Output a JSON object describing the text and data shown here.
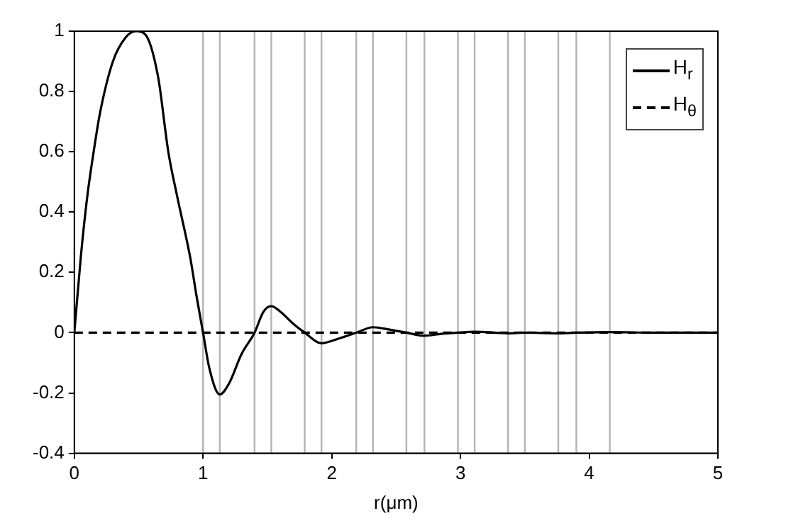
{
  "chart_data": {
    "type": "line",
    "xlabel": "r(μm)",
    "xlim": [
      0,
      5
    ],
    "xticks": [
      0,
      1,
      2,
      3,
      4,
      5
    ],
    "ylim": [
      -0.4,
      1
    ],
    "yticks": [
      -0.4,
      -0.2,
      0,
      0.2,
      0.4,
      0.6,
      0.8,
      1
    ],
    "grid": false,
    "legend": "top right",
    "marker": "none",
    "series": [
      {
        "name": "H$_{r}$",
        "color": "#000000",
        "line_style": "solid",
        "x": [
          0,
          0.05,
          0.1,
          0.15,
          0.2,
          0.3,
          0.4,
          0.48,
          0.55,
          0.65,
          0.73,
          0.8,
          0.9,
          0.95,
          1.0,
          1.05,
          1.13,
          1.2,
          1.3,
          1.4,
          1.47,
          1.53,
          1.6,
          1.7,
          1.79,
          1.92,
          2.05,
          2.19,
          2.32,
          2.45,
          2.58,
          2.72,
          2.85,
          2.98,
          3.11,
          3.37,
          3.5,
          3.76,
          3.9,
          4.16,
          4.5,
          5
        ],
        "values": [
          0,
          0.25,
          0.45,
          0.6,
          0.73,
          0.9,
          0.98,
          1,
          0.99,
          0.85,
          0.6,
          0.45,
          0.25,
          0.12,
          0,
          -0.12,
          -0.205,
          -0.17,
          -0.07,
          0,
          0.07,
          0.088,
          0.07,
          0.03,
          0,
          -0.035,
          -0.02,
          0,
          0.018,
          0.01,
          0,
          -0.01,
          -0.004,
          0,
          0.003,
          -0.002,
          0,
          -0.002,
          0,
          0.002,
          0,
          0
        ]
      },
      {
        "name": "H$_{θ}$",
        "color": "#000000",
        "line_style": "dashed",
        "x": [
          0,
          5
        ],
        "values": [
          0,
          0
        ]
      }
    ],
    "ref_lines": [
      {
        "axis": "x",
        "value": 1.0,
        "color": "#b3b3b3"
      },
      {
        "axis": "x",
        "value": 1.13,
        "color": "#b3b3b3"
      },
      {
        "axis": "x",
        "value": 1.4,
        "color": "#b3b3b3"
      },
      {
        "axis": "x",
        "value": 1.53,
        "color": "#b3b3b3"
      },
      {
        "axis": "x",
        "value": 1.79,
        "color": "#b3b3b3"
      },
      {
        "axis": "x",
        "value": 1.92,
        "color": "#b3b3b3"
      },
      {
        "axis": "x",
        "value": 2.19,
        "color": "#b3b3b3"
      },
      {
        "axis": "x",
        "value": 2.32,
        "color": "#b3b3b3"
      },
      {
        "axis": "x",
        "value": 2.58,
        "color": "#b3b3b3"
      },
      {
        "axis": "x",
        "value": 2.72,
        "color": "#b3b3b3"
      },
      {
        "axis": "x",
        "value": 2.98,
        "color": "#b3b3b3"
      },
      {
        "axis": "x",
        "value": 3.11,
        "color": "#b3b3b3"
      },
      {
        "axis": "x",
        "value": 3.37,
        "color": "#b3b3b3"
      },
      {
        "axis": "x",
        "value": 3.5,
        "color": "#b3b3b3"
      },
      {
        "axis": "x",
        "value": 3.76,
        "color": "#b3b3b3"
      },
      {
        "axis": "x",
        "value": 3.9,
        "color": "#b3b3b3"
      },
      {
        "axis": "x",
        "value": 4.16,
        "color": "#b3b3b3"
      }
    ]
  }
}
